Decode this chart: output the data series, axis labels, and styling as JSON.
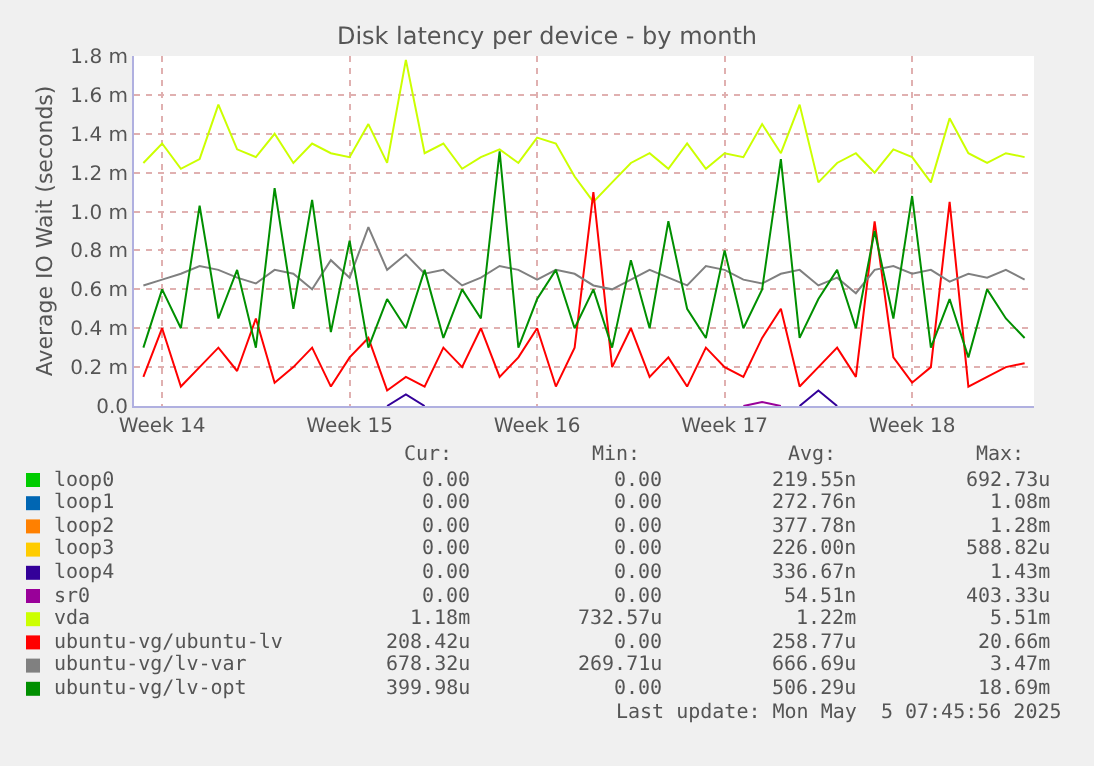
{
  "chart_data": {
    "type": "line",
    "title": "Disk latency per device - by month",
    "ylabel": "Average IO Wait (seconds)",
    "categories": [
      null,
      "Week 14",
      null,
      null,
      null,
      null,
      null,
      null,
      null,
      null,
      null,
      "Week 15",
      null,
      null,
      null,
      null,
      null,
      null,
      null,
      null,
      null,
      "Week 16",
      null,
      null,
      null,
      null,
      null,
      null,
      null,
      null,
      null,
      "Week 17",
      null,
      null,
      null,
      null,
      null,
      null,
      null,
      null,
      null,
      "Week 18",
      null,
      null,
      null,
      null,
      null,
      null
    ],
    "ylim": [
      0,
      1.8
    ],
    "yticks": [
      {
        "value": 0,
        "label": "0.0"
      },
      {
        "value": 0.2,
        "label": "0.2 m"
      },
      {
        "value": 0.4,
        "label": "0.4 m"
      },
      {
        "value": 0.6,
        "label": "0.6 m"
      },
      {
        "value": 0.8,
        "label": "0.8 m"
      },
      {
        "value": 1.0,
        "label": "1.0 m"
      },
      {
        "value": 1.2,
        "label": "1.2 m"
      },
      {
        "value": 1.4,
        "label": "1.4 m"
      },
      {
        "value": 1.6,
        "label": "1.6 m"
      },
      {
        "value": 1.8,
        "label": "1.8 m"
      }
    ],
    "grid": true,
    "legend": "bottom",
    "marker": "none",
    "line_style": "solid",
    "series": [
      {
        "name": "loop0",
        "color": "#00cc00",
        "values": [
          null,
          null,
          null,
          null,
          null,
          null,
          null,
          null,
          null,
          null,
          null,
          null,
          null,
          null,
          null,
          null,
          null,
          null,
          null,
          null,
          null,
          null,
          null,
          null,
          null,
          null,
          null,
          null,
          null,
          null,
          null,
          null,
          null,
          null,
          null,
          null,
          null,
          null,
          null,
          null,
          null,
          null,
          null,
          null,
          null,
          null,
          null,
          null
        ]
      },
      {
        "name": "loop1",
        "color": "#0066b3",
        "values": [
          null,
          null,
          null,
          null,
          null,
          null,
          null,
          null,
          null,
          null,
          null,
          null,
          null,
          null,
          null,
          null,
          null,
          null,
          null,
          null,
          null,
          null,
          null,
          null,
          null,
          null,
          null,
          null,
          null,
          null,
          null,
          null,
          null,
          null,
          null,
          null,
          null,
          null,
          null,
          null,
          null,
          null,
          null,
          null,
          null,
          null,
          null,
          null
        ]
      },
      {
        "name": "loop2",
        "color": "#ff8000",
        "values": [
          null,
          null,
          null,
          null,
          null,
          null,
          null,
          null,
          null,
          null,
          null,
          null,
          null,
          null,
          null,
          null,
          null,
          null,
          null,
          null,
          null,
          null,
          null,
          null,
          null,
          null,
          null,
          null,
          null,
          null,
          null,
          null,
          null,
          null,
          null,
          null,
          null,
          null,
          null,
          null,
          null,
          null,
          null,
          null,
          null,
          null,
          null,
          null
        ]
      },
      {
        "name": "loop3",
        "color": "#ffcc00",
        "values": [
          null,
          null,
          null,
          null,
          null,
          null,
          null,
          null,
          null,
          null,
          null,
          null,
          null,
          null,
          null,
          null,
          null,
          null,
          null,
          null,
          null,
          null,
          null,
          null,
          null,
          null,
          null,
          null,
          null,
          null,
          null,
          null,
          null,
          null,
          null,
          null,
          null,
          null,
          null,
          null,
          null,
          null,
          null,
          null,
          null,
          null,
          null,
          null
        ]
      },
      {
        "name": "loop4",
        "color": "#330099",
        "values": [
          null,
          null,
          null,
          null,
          null,
          null,
          null,
          null,
          null,
          null,
          null,
          null,
          null,
          0,
          0.06,
          0,
          null,
          null,
          null,
          null,
          null,
          null,
          null,
          null,
          null,
          null,
          null,
          null,
          null,
          null,
          null,
          null,
          null,
          null,
          null,
          0,
          0.08,
          0,
          null,
          null,
          null,
          null,
          null,
          null,
          null,
          null,
          null,
          null
        ]
      },
      {
        "name": "sr0",
        "color": "#990099",
        "values": [
          null,
          null,
          null,
          null,
          null,
          null,
          null,
          null,
          null,
          null,
          null,
          null,
          null,
          null,
          null,
          null,
          null,
          null,
          null,
          null,
          null,
          null,
          null,
          null,
          null,
          null,
          null,
          null,
          null,
          null,
          null,
          null,
          0,
          0.02,
          0,
          null,
          null,
          null,
          null,
          null,
          null,
          null,
          null,
          null,
          null,
          null,
          null,
          null
        ]
      },
      {
        "name": "vda",
        "color": "#ccff00",
        "values": [
          1.25,
          1.35,
          1.22,
          1.27,
          1.55,
          1.32,
          1.28,
          1.4,
          1.25,
          1.35,
          1.3,
          1.28,
          1.45,
          1.25,
          1.78,
          1.3,
          1.35,
          1.22,
          1.28,
          1.32,
          1.25,
          1.38,
          1.35,
          1.18,
          1.05,
          1.15,
          1.25,
          1.3,
          1.22,
          1.35,
          1.22,
          1.3,
          1.28,
          1.45,
          1.3,
          1.55,
          1.15,
          1.25,
          1.3,
          1.2,
          1.32,
          1.28,
          1.15,
          1.48,
          1.3,
          1.25,
          1.3,
          1.28
        ]
      },
      {
        "name": "ubuntu-vg/ubuntu-lv",
        "color": "#ff0000",
        "values": [
          0.15,
          0.4,
          0.1,
          0.2,
          0.3,
          0.18,
          0.45,
          0.12,
          0.2,
          0.3,
          0.1,
          0.25,
          0.35,
          0.08,
          0.15,
          0.1,
          0.3,
          0.2,
          0.4,
          0.15,
          0.25,
          0.4,
          0.1,
          0.3,
          1.1,
          0.2,
          0.4,
          0.15,
          0.25,
          0.1,
          0.3,
          0.2,
          0.15,
          0.35,
          0.5,
          0.1,
          0.2,
          0.3,
          0.15,
          0.95,
          0.25,
          0.12,
          0.2,
          1.05,
          0.1,
          0.15,
          0.2,
          0.22
        ]
      },
      {
        "name": "ubuntu-vg/lv-var",
        "color": "#808080",
        "values": [
          0.62,
          0.65,
          0.68,
          0.72,
          0.7,
          0.66,
          0.63,
          0.7,
          0.68,
          0.6,
          0.75,
          0.66,
          0.92,
          0.7,
          0.78,
          0.68,
          0.7,
          0.62,
          0.66,
          0.72,
          0.7,
          0.65,
          0.7,
          0.68,
          0.62,
          0.6,
          0.65,
          0.7,
          0.66,
          0.62,
          0.72,
          0.7,
          0.65,
          0.63,
          0.68,
          0.7,
          0.62,
          0.66,
          0.58,
          0.7,
          0.72,
          0.68,
          0.7,
          0.64,
          0.68,
          0.66,
          0.7,
          0.65
        ]
      },
      {
        "name": "ubuntu-vg/lv-opt",
        "color": "#008f00",
        "values": [
          0.3,
          0.6,
          0.4,
          1.03,
          0.45,
          0.7,
          0.3,
          1.12,
          0.5,
          1.06,
          0.38,
          0.85,
          0.3,
          0.55,
          0.4,
          0.7,
          0.35,
          0.6,
          0.45,
          1.31,
          0.3,
          0.55,
          0.7,
          0.4,
          0.6,
          0.3,
          0.75,
          0.4,
          0.95,
          0.5,
          0.35,
          0.8,
          0.4,
          0.6,
          1.27,
          0.35,
          0.55,
          0.7,
          0.4,
          0.9,
          0.45,
          1.08,
          0.3,
          0.55,
          0.25,
          0.6,
          0.45,
          0.35
        ]
      }
    ],
    "annotations": [
      "Cur:",
      "Min:",
      "Avg:",
      "Max:",
      "0.00",
      "0.00",
      "219.55n",
      "692.73u",
      "0.00",
      "0.00",
      "272.76n",
      "1.08m",
      "0.00",
      "0.00",
      "377.78n",
      "1.28m",
      "0.00",
      "0.00",
      "226.00n",
      "588.82u",
      "0.00",
      "0.00",
      "336.67n",
      "1.43m",
      "0.00",
      "0.00",
      "54.51n",
      "403.33u",
      "1.18m",
      "732.57u",
      "1.22m",
      "5.51m",
      "208.42u",
      "0.00",
      "258.77u",
      "20.66m",
      "678.32u",
      "269.71u",
      "666.69u",
      "3.47m",
      "399.98u",
      "0.00",
      "506.29u",
      "18.69m",
      "Last update: Mon May  5 07:45:56 2025"
    ]
  }
}
